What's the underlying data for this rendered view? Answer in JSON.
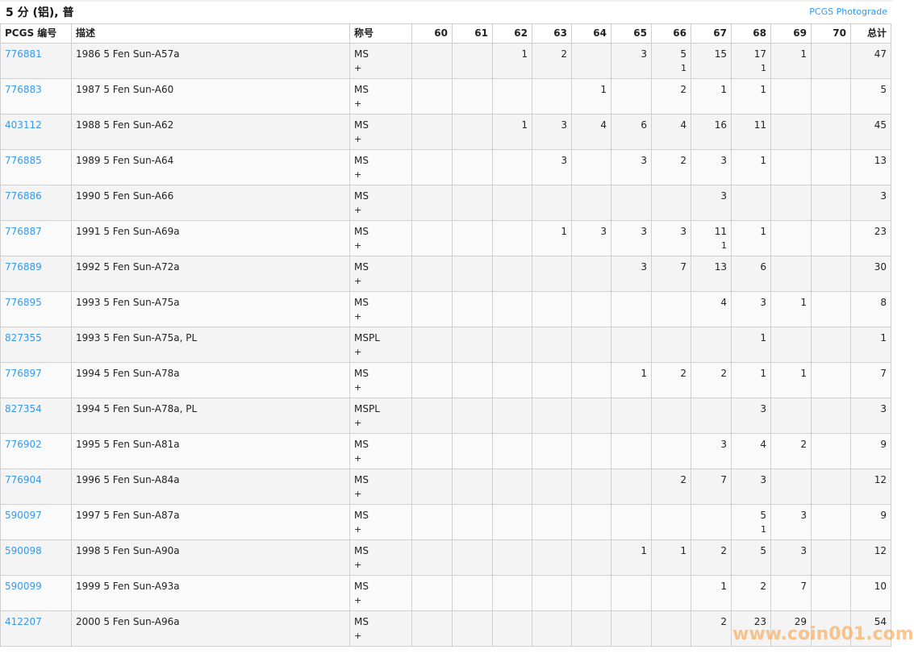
{
  "header": {
    "title": "5 分 (铝), 普",
    "photograde_link": "PCGS Photograde"
  },
  "columns": {
    "pcgs": "PCGS 编号",
    "desc": "描述",
    "designation": "称号",
    "grades": [
      "60",
      "61",
      "62",
      "63",
      "64",
      "65",
      "66",
      "67",
      "68",
      "69",
      "70"
    ],
    "total": "总计"
  },
  "rows": [
    {
      "pcgs": "776881",
      "desc": "1986 5 Fen Sun-A57a",
      "des": "MS",
      "plus": "+",
      "counts": [
        "",
        "",
        "1",
        "2",
        "",
        "3",
        "5",
        "15",
        "17",
        "1",
        ""
      ],
      "plus_counts": [
        "",
        "",
        "",
        "",
        "",
        "",
        "1",
        "",
        "1",
        "",
        ""
      ],
      "total": "47"
    },
    {
      "pcgs": "776883",
      "desc": "1987 5 Fen Sun-A60",
      "des": "MS",
      "plus": "+",
      "counts": [
        "",
        "",
        "",
        "",
        "1",
        "",
        "2",
        "1",
        "1",
        "",
        ""
      ],
      "plus_counts": [],
      "total": "5"
    },
    {
      "pcgs": "403112",
      "desc": "1988 5 Fen Sun-A62",
      "des": "MS",
      "plus": "+",
      "counts": [
        "",
        "",
        "1",
        "3",
        "4",
        "6",
        "4",
        "16",
        "11",
        "",
        ""
      ],
      "plus_counts": [],
      "total": "45"
    },
    {
      "pcgs": "776885",
      "desc": "1989 5 Fen Sun-A64",
      "des": "MS",
      "plus": "+",
      "counts": [
        "",
        "",
        "",
        "3",
        "",
        "3",
        "2",
        "3",
        "1",
        "",
        ""
      ],
      "plus_counts": [],
      "total": "13"
    },
    {
      "pcgs": "776886",
      "desc": "1990 5 Fen Sun-A66",
      "des": "MS",
      "plus": "+",
      "counts": [
        "",
        "",
        "",
        "",
        "",
        "",
        "",
        "3",
        "",
        "",
        ""
      ],
      "plus_counts": [],
      "total": "3"
    },
    {
      "pcgs": "776887",
      "desc": "1991 5 Fen Sun-A69a",
      "des": "MS",
      "plus": "+",
      "counts": [
        "",
        "",
        "",
        "1",
        "3",
        "3",
        "3",
        "11",
        "1",
        "",
        ""
      ],
      "plus_counts": [
        "",
        "",
        "",
        "",
        "",
        "",
        "",
        "1",
        "",
        "",
        ""
      ],
      "total": "23"
    },
    {
      "pcgs": "776889",
      "desc": "1992 5 Fen Sun-A72a",
      "des": "MS",
      "plus": "+",
      "counts": [
        "",
        "",
        "",
        "",
        "",
        "3",
        "7",
        "13",
        "6",
        "",
        ""
      ],
      "plus_counts": [],
      "total": "30"
    },
    {
      "pcgs": "776895",
      "desc": "1993 5 Fen Sun-A75a",
      "des": "MS",
      "plus": "+",
      "counts": [
        "",
        "",
        "",
        "",
        "",
        "",
        "",
        "4",
        "3",
        "1",
        ""
      ],
      "plus_counts": [],
      "total": "8"
    },
    {
      "pcgs": "827355",
      "desc": "1993 5 Fen Sun-A75a, PL",
      "des": "MSPL",
      "plus": "+",
      "counts": [
        "",
        "",
        "",
        "",
        "",
        "",
        "",
        "",
        "1",
        "",
        ""
      ],
      "plus_counts": [],
      "total": "1"
    },
    {
      "pcgs": "776897",
      "desc": "1994 5 Fen Sun-A78a",
      "des": "MS",
      "plus": "+",
      "counts": [
        "",
        "",
        "",
        "",
        "",
        "1",
        "2",
        "2",
        "1",
        "1",
        ""
      ],
      "plus_counts": [],
      "total": "7"
    },
    {
      "pcgs": "827354",
      "desc": "1994 5 Fen Sun-A78a, PL",
      "des": "MSPL",
      "plus": "+",
      "counts": [
        "",
        "",
        "",
        "",
        "",
        "",
        "",
        "",
        "3",
        "",
        ""
      ],
      "plus_counts": [],
      "total": "3"
    },
    {
      "pcgs": "776902",
      "desc": "1995 5 Fen Sun-A81a",
      "des": "MS",
      "plus": "+",
      "counts": [
        "",
        "",
        "",
        "",
        "",
        "",
        "",
        "3",
        "4",
        "2",
        ""
      ],
      "plus_counts": [],
      "total": "9"
    },
    {
      "pcgs": "776904",
      "desc": "1996 5 Fen Sun-A84a",
      "des": "MS",
      "plus": "+",
      "counts": [
        "",
        "",
        "",
        "",
        "",
        "",
        "2",
        "7",
        "3",
        "",
        ""
      ],
      "plus_counts": [],
      "total": "12"
    },
    {
      "pcgs": "590097",
      "desc": "1997 5 Fen Sun-A87a",
      "des": "MS",
      "plus": "+",
      "counts": [
        "",
        "",
        "",
        "",
        "",
        "",
        "",
        "",
        "5",
        "3",
        ""
      ],
      "plus_counts": [
        "",
        "",
        "",
        "",
        "",
        "",
        "",
        "",
        "1",
        "",
        ""
      ],
      "total": "9"
    },
    {
      "pcgs": "590098",
      "desc": "1998 5 Fen Sun-A90a",
      "des": "MS",
      "plus": "+",
      "counts": [
        "",
        "",
        "",
        "",
        "",
        "1",
        "1",
        "2",
        "5",
        "3",
        ""
      ],
      "plus_counts": [],
      "total": "12"
    },
    {
      "pcgs": "590099",
      "desc": "1999 5 Fen Sun-A93a",
      "des": "MS",
      "plus": "+",
      "counts": [
        "",
        "",
        "",
        "",
        "",
        "",
        "",
        "1",
        "2",
        "7",
        ""
      ],
      "plus_counts": [],
      "total": "10"
    },
    {
      "pcgs": "412207",
      "desc": "2000 5 Fen Sun-A96a",
      "des": "MS",
      "plus": "+",
      "counts": [
        "",
        "",
        "",
        "",
        "",
        "",
        "",
        "2",
        "23",
        "29",
        ""
      ],
      "plus_counts": [],
      "total": "54"
    }
  ],
  "watermark": "www.coin001.com",
  "colors": {
    "link": "#3399ee",
    "row_odd": "#f4f4f4",
    "row_even": "#fafafa",
    "watermark": "#faa046"
  }
}
